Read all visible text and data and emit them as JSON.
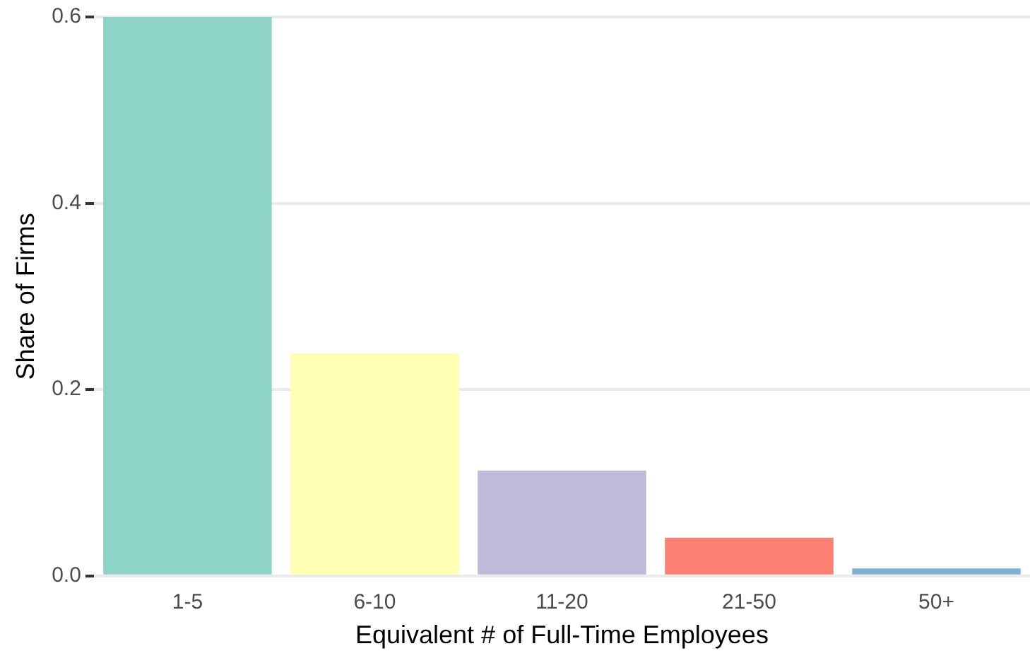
{
  "chart_data": {
    "type": "bar",
    "xlabel": "Equivalent # of Full-Time Employees",
    "ylabel": "Share of Firms",
    "categories": [
      "1-5",
      "6-10",
      "11-20",
      "21-50",
      "50+"
    ],
    "values": [
      0.6,
      0.239,
      0.113,
      0.041,
      0.008
    ],
    "colors": [
      "#8dd3c7",
      "#ffffb3",
      "#bebada",
      "#fb8072",
      "#80b1d3"
    ],
    "ylim": [
      0,
      0.6
    ],
    "yticks": [
      {
        "value": 0,
        "label": "0.0"
      },
      {
        "value": 0.2,
        "label": "0.2"
      },
      {
        "value": 0.4,
        "label": "0.4"
      },
      {
        "value": 0.6,
        "label": "0.6"
      }
    ],
    "grid": "y",
    "legend": false
  }
}
